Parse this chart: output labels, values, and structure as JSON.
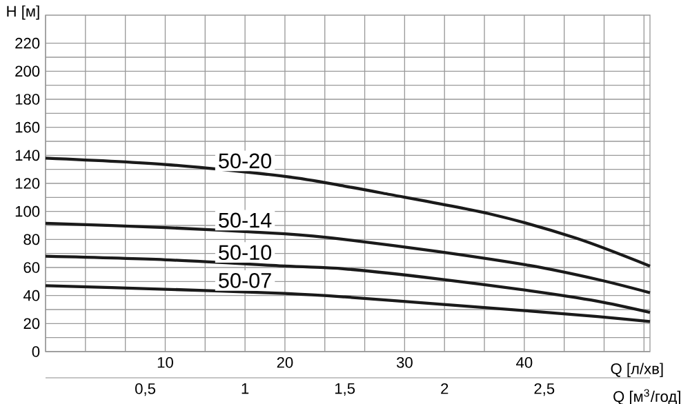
{
  "chart_data": {
    "type": "line",
    "ylabel": "H [м]",
    "xlabel": "Q [л/хв]",
    "x2label": "Q [м$^{3}$/год]",
    "xlim": [
      0,
      50.5
    ],
    "xticks": [
      10,
      20,
      30,
      40
    ],
    "x2lim": [
      0,
      3.03
    ],
    "x2ticks": [
      {
        "value": 0.5,
        "label": "0,5"
      },
      1,
      {
        "value": 1.5,
        "label": "1,5"
      },
      2,
      {
        "value": 2.5,
        "label": "2,5"
      }
    ],
    "ylim": [
      0,
      240
    ],
    "yticks": [
      0,
      20,
      40,
      60,
      80,
      100,
      120,
      140,
      160,
      180,
      200,
      220
    ],
    "grid": true,
    "series": [
      {
        "name": "50-20",
        "color": "#1a1a1a",
        "x": [
          0,
          10,
          20,
          25,
          28.2,
          37,
          44.3,
          50.5
        ],
        "values": [
          138,
          133.5,
          125,
          118,
          113,
          98.5,
          81,
          61
        ]
      },
      {
        "name": "50-14",
        "color": "#1a1a1a",
        "x": [
          0,
          10,
          20,
          25,
          32.7,
          40.4,
          46.1,
          50.5
        ],
        "values": [
          91.5,
          88.5,
          84,
          80,
          71.5,
          61.5,
          51.5,
          42
        ]
      },
      {
        "name": "50-10",
        "color": "#1a1a1a",
        "x": [
          0,
          10,
          20,
          25,
          32.7,
          40.4,
          46.1,
          50.5
        ],
        "values": [
          68,
          65.5,
          61,
          59,
          52,
          43.5,
          36,
          28
        ]
      },
      {
        "name": "50-07",
        "color": "#1a1a1a",
        "x": [
          0,
          10,
          20,
          25,
          32.7,
          40.4,
          46.1,
          50.5
        ],
        "values": [
          47,
          44.5,
          41.5,
          39,
          34,
          29,
          25,
          21.5
        ]
      }
    ]
  }
}
